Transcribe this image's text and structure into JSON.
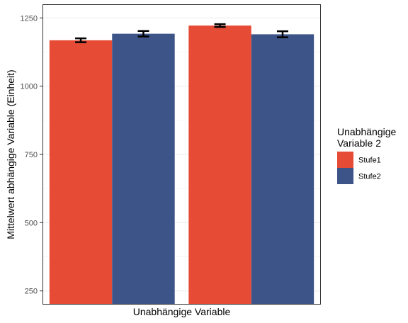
{
  "chart_data": {
    "type": "bar",
    "xlabel": "Unabhängige Variable",
    "ylabel": "Mittelwert abhängige Variable (Einheit)",
    "ylim": [
      200,
      1300
    ],
    "yticks": [
      250,
      500,
      750,
      1000,
      1250
    ],
    "grid": true,
    "groups": 2,
    "legend": {
      "title_lines": [
        "Unabhängige",
        "Variable 2"
      ],
      "placement": "right"
    },
    "series": [
      {
        "name": "Stufe1",
        "color": "#e64b35",
        "values": [
          1168,
          1222
        ],
        "errors": [
          7,
          5
        ]
      },
      {
        "name": "Stufe2",
        "color": "#3c5488",
        "values": [
          1192,
          1190
        ],
        "errors": [
          10,
          11
        ]
      }
    ]
  }
}
